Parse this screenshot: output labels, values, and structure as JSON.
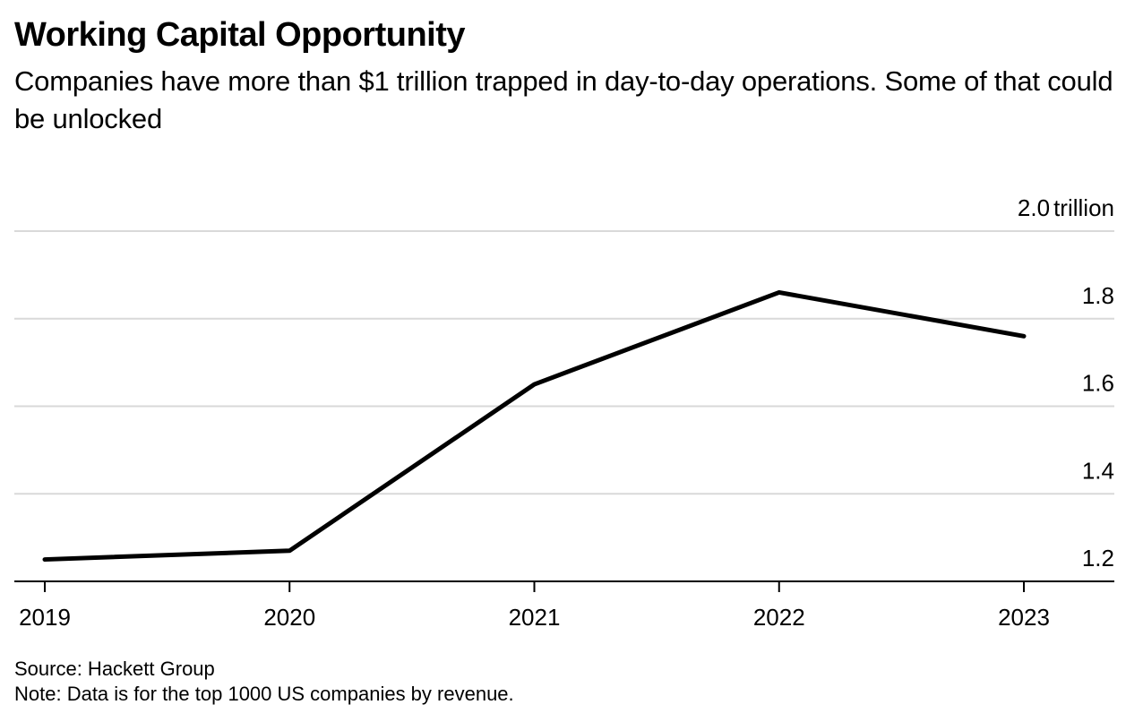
{
  "title": "Working Capital Opportunity",
  "subtitle": "Companies have more than $1 trillion trapped in day-to-day operations. Some of that could be unlocked",
  "source": "Source: Hackett Group",
  "note": "Note: Data is for the top 1000 US companies by revenue.",
  "chart_data": {
    "type": "line",
    "title": "Working Capital Opportunity",
    "subtitle": "Companies have more than $1 trillion trapped in day-to-day operations. Some of that could be unlocked",
    "xlabel": "",
    "ylabel": "",
    "x": [
      "2019",
      "2020",
      "2021",
      "2022",
      "2023"
    ],
    "series": [
      {
        "values": [
          1.25,
          1.27,
          1.65,
          1.86,
          1.76
        ]
      }
    ],
    "ylim": [
      1.2,
      2.0
    ],
    "y_ticks": [
      1.2,
      1.4,
      1.6,
      1.8,
      2.0
    ],
    "y_tick_labels": [
      "1.2",
      "1.4",
      "1.6",
      "1.8",
      "2.0"
    ],
    "y_unit_label": "trillion",
    "y_axis_side": "right",
    "grid": true,
    "line_color": "#000000",
    "grid_color": "#d9d9d9"
  }
}
